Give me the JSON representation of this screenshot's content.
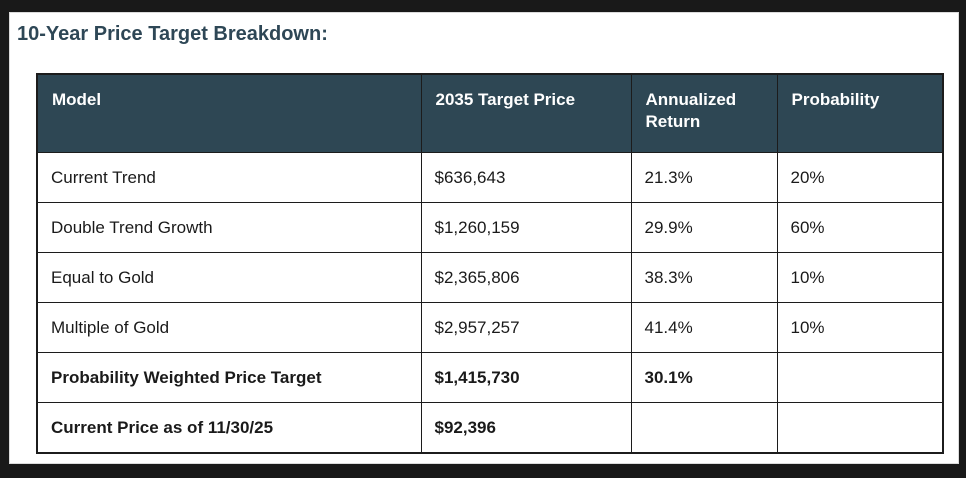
{
  "title": "10-Year Price Target Breakdown:",
  "chart_data": {
    "type": "table",
    "title": "10-Year Price Target Breakdown:",
    "columns": [
      "Model",
      "2035 Target Price",
      "Annualized Return",
      "Probability"
    ],
    "rows": [
      {
        "cells": [
          "Current Trend",
          "$636,643",
          "21.3%",
          "20%"
        ],
        "bold": false
      },
      {
        "cells": [
          "Double Trend Growth",
          "$1,260,159",
          "29.9%",
          "60%"
        ],
        "bold": false
      },
      {
        "cells": [
          "Equal to Gold",
          "$2,365,806",
          "38.3%",
          "10%"
        ],
        "bold": false
      },
      {
        "cells": [
          "Multiple of Gold",
          "$2,957,257",
          "41.4%",
          "10%"
        ],
        "bold": false
      },
      {
        "cells": [
          "Probability Weighted Price Target",
          "$1,415,730",
          "30.1%",
          ""
        ],
        "bold": true
      },
      {
        "cells": [
          "Current Price as of 11/30/25",
          "$92,396",
          "",
          ""
        ],
        "bold": true
      }
    ]
  },
  "colors": {
    "frame": "#191919",
    "background": "#FFFFFF",
    "title_text": "#2E4756",
    "header_bg": "#2E4754",
    "header_text": "#FFFFFF",
    "grid": "#1C1C1C"
  }
}
